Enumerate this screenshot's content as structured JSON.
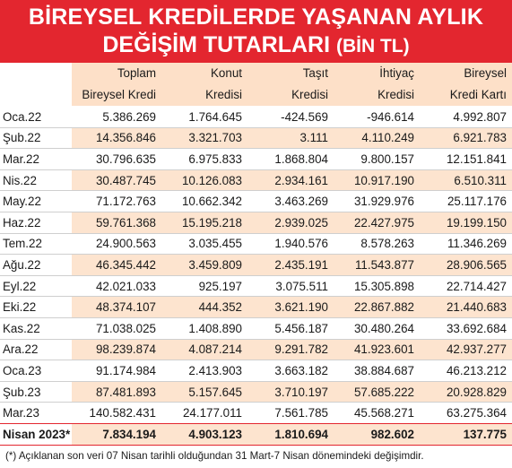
{
  "title_line1": "BİREYSEL KREDİLERDE YAŞANAN AYLIK",
  "title_line2_main": "DEĞİŞİM TUTARLARI",
  "title_line2_sub": "(BİN TL)",
  "headers": {
    "row1": [
      "Toplam",
      "Konut",
      "Taşıt",
      "İhtiyaç",
      "Bireysel"
    ],
    "row2": [
      "Bireysel Kredi",
      "Kredisi",
      "Kredisi",
      "Kredisi",
      "Kredi Kartı"
    ]
  },
  "rows": [
    {
      "label": "Oca.22",
      "values": [
        "5.386.269",
        "1.764.645",
        "-424.569",
        "-946.614",
        "4.992.807"
      ]
    },
    {
      "label": "Şub.22",
      "values": [
        "14.356.846",
        "3.321.703",
        "3.111",
        "4.110.249",
        "6.921.783"
      ]
    },
    {
      "label": "Mar.22",
      "values": [
        "30.796.635",
        "6.975.833",
        "1.868.804",
        "9.800.157",
        "12.151.841"
      ]
    },
    {
      "label": "Nis.22",
      "values": [
        "30.487.745",
        "10.126.083",
        "2.934.161",
        "10.917.190",
        "6.510.311"
      ]
    },
    {
      "label": "May.22",
      "values": [
        "71.172.763",
        "10.662.342",
        "3.463.269",
        "31.929.976",
        "25.117.176"
      ]
    },
    {
      "label": "Haz.22",
      "values": [
        "59.761.368",
        "15.195.218",
        "2.939.025",
        "22.427.975",
        "19.199.150"
      ]
    },
    {
      "label": "Tem.22",
      "values": [
        "24.900.563",
        "3.035.455",
        "1.940.576",
        "8.578.263",
        "11.346.269"
      ]
    },
    {
      "label": "Ağu.22",
      "values": [
        "46.345.442",
        "3.459.809",
        "2.435.191",
        "11.543.877",
        "28.906.565"
      ]
    },
    {
      "label": "Eyl.22",
      "values": [
        "42.021.033",
        "925.197",
        "3.075.511",
        "15.305.898",
        "22.714.427"
      ]
    },
    {
      "label": "Eki.22",
      "values": [
        "48.374.107",
        "444.352",
        "3.621.190",
        "22.867.882",
        "21.440.683"
      ]
    },
    {
      "label": "Kas.22",
      "values": [
        "71.038.025",
        "1.408.890",
        "5.456.187",
        "30.480.264",
        "33.692.684"
      ]
    },
    {
      "label": "Ara.22",
      "values": [
        "98.239.874",
        "4.087.214",
        "9.291.782",
        "41.923.601",
        "42.937.277"
      ]
    },
    {
      "label": "Oca.23",
      "values": [
        "91.174.984",
        "2.413.903",
        "3.663.182",
        "38.884.687",
        "46.213.212"
      ]
    },
    {
      "label": "Şub.23",
      "values": [
        "87.481.893",
        "5.157.645",
        "3.710.197",
        "57.685.222",
        "20.928.829"
      ]
    },
    {
      "label": "Mar.23",
      "values": [
        "140.582.431",
        "24.177.011",
        "7.561.785",
        "45.568.271",
        "63.275.364"
      ]
    },
    {
      "label": "Nisan 2023*",
      "values": [
        "7.834.194",
        "4.903.123",
        "1.810.694",
        "982.602",
        "137.775"
      ]
    }
  ],
  "footnote": "(*) Açıklanan son veri 07 Nisan tarihli olduğundan 31 Mart-7 Nisan dönemindeki değişimdir."
}
